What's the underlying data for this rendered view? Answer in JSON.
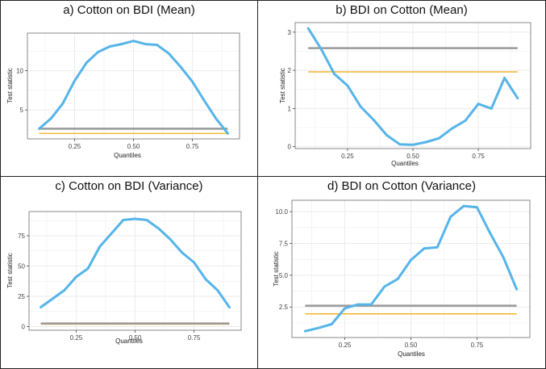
{
  "colors": {
    "series": "#56b4e9",
    "gray_line": "#999999",
    "orange_line": "#f0a500",
    "grid": "#ebebeb",
    "panel_border": "#888888"
  },
  "panels": [
    {
      "title": "a)    Cotton on BDI (Mean)"
    },
    {
      "title": "b)    BDI on Cotton (Mean)"
    },
    {
      "title": "c)    Cotton on BDI (Variance)"
    },
    {
      "title": "d)    BDI on Cotton (Variance)"
    }
  ],
  "chart_data": [
    {
      "type": "line",
      "title": "a)    Cotton on BDI (Mean)",
      "xlabel": "Quantiles",
      "ylabel": "Test statistic",
      "xlim": [
        0.05,
        0.95
      ],
      "ylim": [
        1.3,
        14.8
      ],
      "x_ticks": [
        0.25,
        0.5,
        0.75
      ],
      "x_tick_labels": [
        "0.25",
        "0.50",
        "0.75"
      ],
      "y_ticks": [
        5,
        10
      ],
      "y_tick_labels": [
        "5",
        "10"
      ],
      "x": [
        0.1,
        0.15,
        0.2,
        0.25,
        0.3,
        0.35,
        0.4,
        0.45,
        0.5,
        0.55,
        0.6,
        0.65,
        0.7,
        0.75,
        0.8,
        0.85,
        0.9
      ],
      "series": [
        {
          "name": "Test statistic",
          "values": [
            2.6,
            3.9,
            5.8,
            8.7,
            11.0,
            12.4,
            13.1,
            13.4,
            13.8,
            13.4,
            13.3,
            12.2,
            10.5,
            8.6,
            6.2,
            3.9,
            2.0
          ]
        }
      ],
      "hlines": [
        {
          "name": "critical value (gray)",
          "value": 2.6
        },
        {
          "name": "critical value (orange)",
          "value": 2.0
        }
      ]
    },
    {
      "type": "line",
      "title": "b)    BDI on Cotton (Mean)",
      "xlabel": "Quantiles",
      "ylabel": "Test statistic",
      "xlim": [
        0.05,
        0.95
      ],
      "ylim": [
        -0.05,
        3.25
      ],
      "x_ticks": [
        0.25,
        0.5,
        0.75
      ],
      "x_tick_labels": [
        "0.25",
        "0.50",
        "0.75"
      ],
      "y_ticks": [
        0,
        1,
        2,
        3
      ],
      "y_tick_labels": [
        "0",
        "1",
        "2",
        "3"
      ],
      "x": [
        0.1,
        0.15,
        0.2,
        0.25,
        0.3,
        0.35,
        0.4,
        0.45,
        0.5,
        0.55,
        0.6,
        0.65,
        0.7,
        0.75,
        0.8,
        0.85,
        0.9
      ],
      "series": [
        {
          "name": "Test statistic",
          "values": [
            3.1,
            2.55,
            1.9,
            1.6,
            1.05,
            0.7,
            0.3,
            0.06,
            0.05,
            0.12,
            0.22,
            0.48,
            0.68,
            1.12,
            1.0,
            1.8,
            1.27
          ]
        }
      ],
      "hlines": [
        {
          "name": "critical value (gray)",
          "value": 2.58
        },
        {
          "name": "critical value (orange)",
          "value": 1.96
        }
      ]
    },
    {
      "type": "line",
      "title": "c)    Cotton on BDI (Variance)",
      "xlabel": "Quantiles",
      "ylabel": "Test statistic",
      "xlim": [
        0.05,
        0.95
      ],
      "ylim": [
        -3,
        95
      ],
      "x_ticks": [
        0.25,
        0.5,
        0.75
      ],
      "x_tick_labels": [
        "0.25",
        "0.50",
        "0.75"
      ],
      "y_ticks": [
        0,
        25,
        50,
        75
      ],
      "y_tick_labels": [
        "0",
        "25",
        "50",
        "75"
      ],
      "x": [
        0.1,
        0.15,
        0.2,
        0.25,
        0.3,
        0.35,
        0.4,
        0.45,
        0.5,
        0.55,
        0.6,
        0.65,
        0.7,
        0.75,
        0.8,
        0.85,
        0.9
      ],
      "series": [
        {
          "name": "Test statistic",
          "values": [
            16,
            23,
            30,
            41,
            48,
            66,
            77,
            88,
            89,
            88,
            81,
            72,
            61,
            53,
            39,
            30,
            16
          ]
        }
      ],
      "hlines": [
        {
          "name": "critical value (gray)",
          "value": 2.6
        },
        {
          "name": "critical value (orange)",
          "value": 2.0
        }
      ]
    },
    {
      "type": "line",
      "title": "d)    BDI on Cotton (Variance)",
      "xlabel": "Quantiles",
      "ylabel": "Test statistic",
      "xlim": [
        0.05,
        0.95
      ],
      "ylim": [
        0.1,
        10.9
      ],
      "x_ticks": [
        0.25,
        0.5,
        0.75
      ],
      "x_tick_labels": [
        "0.25",
        "0.50",
        "0.75"
      ],
      "y_ticks": [
        2.5,
        5.0,
        7.5,
        10.0
      ],
      "y_tick_labels": [
        "2.5",
        "5.0",
        "7.5",
        "10.0"
      ],
      "x": [
        0.1,
        0.15,
        0.2,
        0.25,
        0.3,
        0.35,
        0.4,
        0.45,
        0.5,
        0.55,
        0.6,
        0.65,
        0.7,
        0.75,
        0.8,
        0.85,
        0.9
      ],
      "series": [
        {
          "name": "Test statistic",
          "values": [
            0.6,
            0.85,
            1.15,
            2.4,
            2.7,
            2.7,
            4.1,
            4.7,
            6.2,
            7.1,
            7.2,
            9.6,
            10.45,
            10.35,
            8.3,
            6.4,
            3.9
          ]
        }
      ],
      "hlines": [
        {
          "name": "critical value (gray)",
          "value": 2.6
        },
        {
          "name": "critical value (orange)",
          "value": 1.96
        }
      ]
    }
  ]
}
